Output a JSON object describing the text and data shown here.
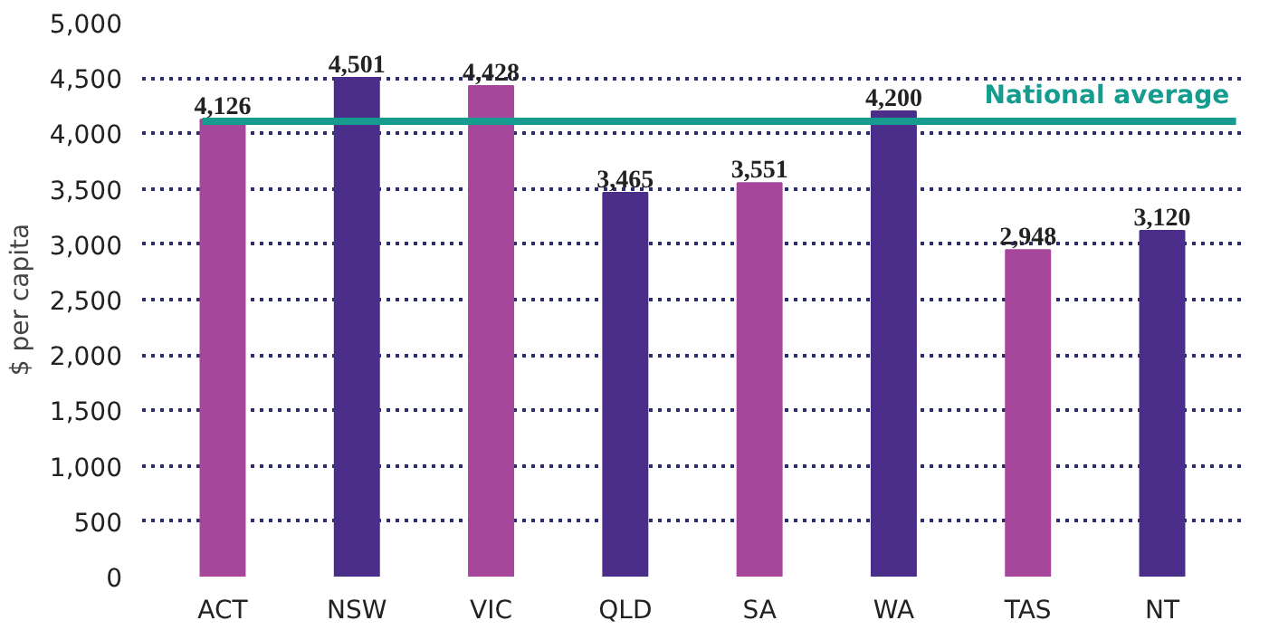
{
  "chart_data": {
    "type": "bar",
    "ylabel": "$ per capita",
    "categories": [
      "ACT",
      "NSW",
      "VIC",
      "QLD",
      "SA",
      "WA",
      "TAS",
      "NT"
    ],
    "values": [
      4126,
      4501,
      4428,
      3465,
      3551,
      4200,
      2948,
      3120
    ],
    "colors": [
      "#a6479b",
      "#4b2d8a",
      "#a6479b",
      "#4b2d8a",
      "#a6479b",
      "#4b2d8a",
      "#a6479b",
      "#4b2d8a"
    ],
    "value_labels": [
      "4,126",
      "4,501",
      "4,428",
      "3,465",
      "3,551",
      "4,200",
      "2,948",
      "3,120"
    ],
    "ylim": [
      0,
      5000
    ],
    "yticks": [
      0,
      {
        "value": 500,
        "label": "500"
      },
      {
        "value": 1000,
        "label": "1,000"
      },
      {
        "value": 1500,
        "label": "1,500"
      },
      {
        "value": 2000,
        "label": "2,000"
      },
      {
        "value": 2500,
        "label": "2,500"
      },
      {
        "value": 3000,
        "label": "3,000"
      },
      {
        "value": 3500,
        "label": "3,500"
      },
      {
        "value": 4000,
        "label": "4,000"
      },
      {
        "value": 4500,
        "label": "4,500"
      },
      {
        "value": 5000,
        "label": "5,000"
      }
    ],
    "grid": "y",
    "ref_lines": [
      {
        "axis": "y",
        "value": 4110,
        "label": "National average",
        "color": "#169b8f"
      }
    ]
  }
}
